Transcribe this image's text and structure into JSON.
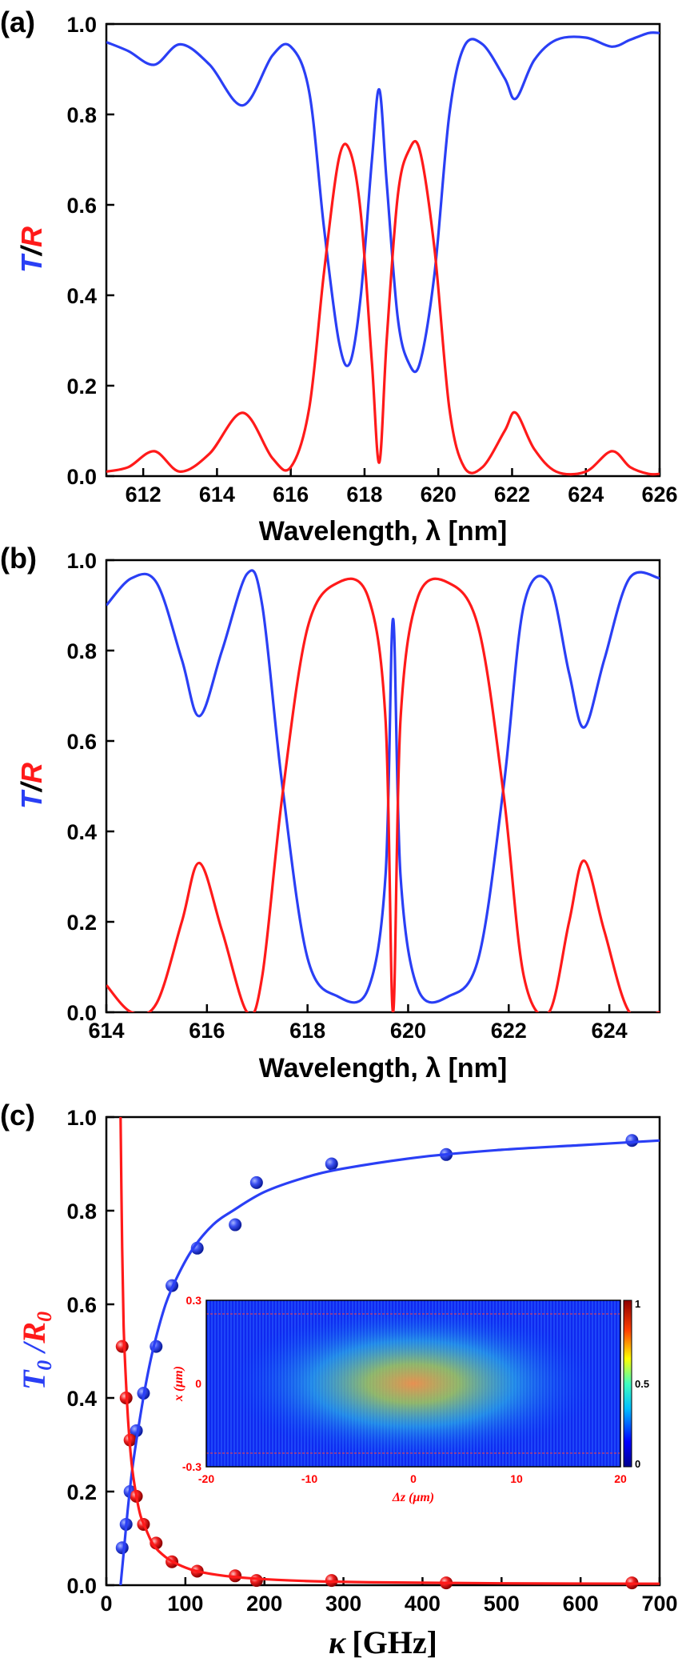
{
  "colors": {
    "T": "#2a3ff5",
    "R": "#ff1a1a",
    "axis": "#000000",
    "inset_text": "#ff0000"
  },
  "chart_data": [
    {
      "id": "a",
      "type": "line",
      "panel_label": "(a)",
      "xlabel": "Wavelength, λ [nm]",
      "ylabel_T": "T",
      "ylabel_sep": "/",
      "ylabel_R": "R",
      "xlim": [
        611,
        626
      ],
      "ylim": [
        0,
        1
      ],
      "xticks": [
        612,
        614,
        616,
        618,
        620,
        622,
        624,
        626
      ],
      "yticks": [
        "0.0",
        "0.2",
        "0.4",
        "0.6",
        "0.8",
        "1.0"
      ],
      "series": [
        {
          "name": "T",
          "x": [
            611,
            611.6,
            612.3,
            613.0,
            613.8,
            614.7,
            615.5,
            616.0,
            616.5,
            616.9,
            617.3,
            617.6,
            617.9,
            618.2,
            618.4,
            618.6,
            618.9,
            619.2,
            619.5,
            619.9,
            620.3,
            620.7,
            621.2,
            621.8,
            622.1,
            622.6,
            623.2,
            624.0,
            624.7,
            625.2,
            625.7,
            626
          ],
          "y": [
            0.96,
            0.94,
            0.91,
            0.955,
            0.91,
            0.82,
            0.93,
            0.95,
            0.85,
            0.55,
            0.3,
            0.25,
            0.4,
            0.7,
            0.855,
            0.65,
            0.35,
            0.25,
            0.25,
            0.45,
            0.8,
            0.95,
            0.955,
            0.88,
            0.835,
            0.92,
            0.965,
            0.97,
            0.95,
            0.965,
            0.98,
            0.98
          ]
        },
        {
          "name": "R",
          "x": [
            611,
            611.6,
            612.3,
            613.0,
            613.8,
            614.7,
            615.5,
            616.0,
            616.5,
            616.9,
            617.3,
            617.6,
            617.9,
            618.2,
            618.4,
            618.6,
            618.9,
            619.2,
            619.5,
            619.9,
            620.3,
            620.7,
            621.2,
            621.8,
            622.1,
            622.6,
            623.2,
            624.0,
            624.7,
            625.2,
            625.7,
            626
          ],
          "y": [
            0.01,
            0.02,
            0.055,
            0.01,
            0.05,
            0.14,
            0.04,
            0.02,
            0.15,
            0.45,
            0.7,
            0.72,
            0.58,
            0.25,
            0.03,
            0.3,
            0.62,
            0.72,
            0.72,
            0.5,
            0.15,
            0.02,
            0.02,
            0.1,
            0.14,
            0.06,
            0.01,
            0.01,
            0.055,
            0.02,
            0.005,
            0.005
          ]
        }
      ]
    },
    {
      "id": "b",
      "type": "line",
      "panel_label": "(b)",
      "xlabel": "Wavelength, λ [nm]",
      "ylabel_T": "T",
      "ylabel_sep": "/",
      "ylabel_R": "R",
      "xlim": [
        614,
        625
      ],
      "ylim": [
        0,
        1
      ],
      "xticks": [
        614,
        616,
        618,
        620,
        622,
        624
      ],
      "yticks": [
        "0.0",
        "0.2",
        "0.4",
        "0.6",
        "0.8",
        "1.0"
      ],
      "series": [
        {
          "name": "T",
          "x": [
            614,
            614.5,
            615.0,
            615.5,
            615.85,
            616.3,
            616.8,
            617.1,
            617.5,
            618.0,
            618.6,
            619.2,
            619.55,
            619.7,
            619.85,
            620.2,
            620.8,
            621.4,
            621.9,
            622.3,
            622.8,
            623.2,
            623.5,
            623.9,
            624.4,
            625
          ],
          "y": [
            0.9,
            0.96,
            0.95,
            0.78,
            0.655,
            0.8,
            0.97,
            0.9,
            0.5,
            0.12,
            0.035,
            0.05,
            0.3,
            0.87,
            0.3,
            0.05,
            0.035,
            0.12,
            0.5,
            0.9,
            0.95,
            0.75,
            0.63,
            0.78,
            0.96,
            0.96
          ]
        },
        {
          "name": "R",
          "x": [
            614,
            614.5,
            615.0,
            615.5,
            615.85,
            616.3,
            616.8,
            617.1,
            617.5,
            618.0,
            618.6,
            619.2,
            619.55,
            619.7,
            619.85,
            620.2,
            620.8,
            621.4,
            621.9,
            622.3,
            622.8,
            623.2,
            623.5,
            623.9,
            624.4,
            625
          ],
          "y": [
            0.06,
            0.0,
            0.02,
            0.2,
            0.33,
            0.18,
            0.0,
            0.08,
            0.48,
            0.85,
            0.95,
            0.92,
            0.65,
            0.0,
            0.65,
            0.92,
            0.95,
            0.85,
            0.48,
            0.08,
            0.0,
            0.2,
            0.335,
            0.18,
            0.0,
            0.0
          ]
        }
      ]
    },
    {
      "id": "c",
      "type": "scatter",
      "panel_label": "(c)",
      "xlabel": "[GHz]",
      "xlabel_symbol": "κ",
      "ylabel_T": "T",
      "ylabel_T_sub": "0",
      "ylabel_sep": " /",
      "ylabel_R": "R",
      "ylabel_R_sub": "0",
      "xlim": [
        0,
        700
      ],
      "ylim": [
        0,
        1
      ],
      "xticks": [
        0,
        100,
        200,
        300,
        400,
        500,
        600,
        700
      ],
      "yticks": [
        "0.0",
        "0.2",
        "0.4",
        "0.6",
        "0.8",
        "1.0"
      ],
      "series": [
        {
          "name": "T points",
          "x": [
            20,
            25,
            30,
            38,
            47,
            63,
            83,
            115,
            163,
            190,
            285,
            430,
            665
          ],
          "y": [
            0.08,
            0.13,
            0.2,
            0.33,
            0.41,
            0.51,
            0.64,
            0.72,
            0.77,
            0.86,
            0.9,
            0.92,
            0.95
          ]
        },
        {
          "name": "R points",
          "x": [
            20,
            25,
            30,
            38,
            47,
            63,
            83,
            115,
            163,
            190,
            285,
            430,
            665
          ],
          "y": [
            0.51,
            0.4,
            0.31,
            0.19,
            0.13,
            0.09,
            0.05,
            0.03,
            0.02,
            0.01,
            0.01,
            0.005,
            0.005
          ]
        },
        {
          "name": "T fit",
          "x": [
            18,
            22,
            27,
            33,
            40,
            50,
            60,
            75,
            90,
            110,
            135,
            160,
            200,
            250,
            300,
            400,
            500,
            600,
            700
          ],
          "y": [
            0.0,
            0.07,
            0.16,
            0.25,
            0.33,
            0.43,
            0.51,
            0.6,
            0.66,
            0.72,
            0.77,
            0.8,
            0.84,
            0.87,
            0.89,
            0.915,
            0.93,
            0.94,
            0.95
          ]
        },
        {
          "name": "R fit",
          "x": [
            18,
            20,
            22,
            25,
            28,
            32,
            37,
            43,
            50,
            60,
            75,
            90,
            110,
            140,
            180,
            250,
            350,
            500,
            700
          ],
          "y": [
            1.0,
            0.72,
            0.55,
            0.43,
            0.34,
            0.26,
            0.2,
            0.15,
            0.12,
            0.085,
            0.06,
            0.045,
            0.032,
            0.022,
            0.015,
            0.009,
            0.006,
            0.004,
            0.003
          ]
        }
      ],
      "inset": {
        "xlabel": "Δz (μm)",
        "ylabel": "x (μm)",
        "xticks": [
          "-20",
          "-10",
          "0",
          "10",
          "20"
        ],
        "yticks": [
          "0.3",
          "0",
          "-0.3"
        ],
        "colorbar_ticks": [
          "1",
          "0.5",
          "0"
        ]
      }
    }
  ]
}
